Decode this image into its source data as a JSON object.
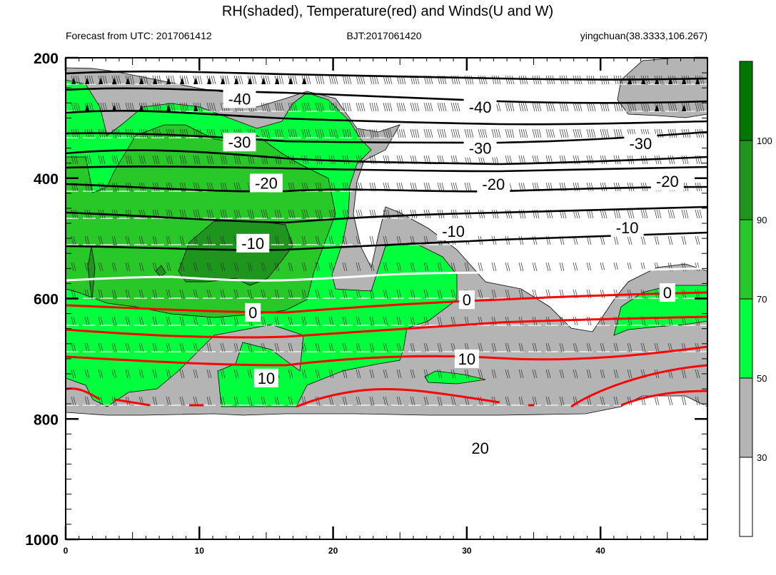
{
  "chart_data": {
    "type": "heatmap",
    "title": "RH(shaded), Temperature(red) and Winds(U and W)",
    "subtitle_left": "Forecast from UTC: 2017061412",
    "subtitle_center": "BJT:2017061420",
    "subtitle_right": "yingchuan(38.3333,106.267)",
    "xlim": [
      0,
      48
    ],
    "x_ticks": [
      "0",
      "10",
      "20",
      "30",
      "40"
    ],
    "x_tick_values": [
      0,
      10,
      20,
      30,
      40
    ],
    "ylim": [
      200,
      1000
    ],
    "y_ticks": [
      "200",
      "400",
      "600",
      "800",
      "1000"
    ],
    "y_tick_values": [
      200,
      400,
      600,
      800,
      1000
    ],
    "colorbar": {
      "levels": [
        "30",
        "50",
        "70",
        "90",
        "100"
      ],
      "level_values": [
        30,
        50,
        70,
        90,
        100
      ],
      "colors": [
        "#ffffff",
        "#b4b4b4",
        "#00ff3c",
        "#28c828",
        "#1e961e",
        "#007800"
      ]
    },
    "temperature_labels": [
      {
        "text": "-40",
        "x": 13,
        "p": 268
      },
      {
        "text": "-40",
        "x": 31,
        "p": 282
      },
      {
        "text": "-30",
        "x": 13,
        "p": 340
      },
      {
        "text": "-30",
        "x": 31,
        "p": 350
      },
      {
        "text": "-30",
        "x": 43,
        "p": 342
      },
      {
        "text": "-20",
        "x": 15,
        "p": 408
      },
      {
        "text": "-20",
        "x": 32,
        "p": 410
      },
      {
        "text": "-20",
        "x": 45,
        "p": 405
      },
      {
        "text": "-10",
        "x": 14,
        "p": 508
      },
      {
        "text": "-10",
        "x": 29,
        "p": 488
      },
      {
        "text": "-10",
        "x": 42,
        "p": 482
      },
      {
        "text": "0",
        "x": 14,
        "p": 623
      },
      {
        "text": "0",
        "x": 30,
        "p": 602
      },
      {
        "text": "0",
        "x": 45,
        "p": 590
      },
      {
        "text": "10",
        "x": 15,
        "p": 732
      },
      {
        "text": "10",
        "x": 30,
        "p": 700
      },
      {
        "text": "20",
        "x": 31,
        "p": 848
      }
    ]
  }
}
